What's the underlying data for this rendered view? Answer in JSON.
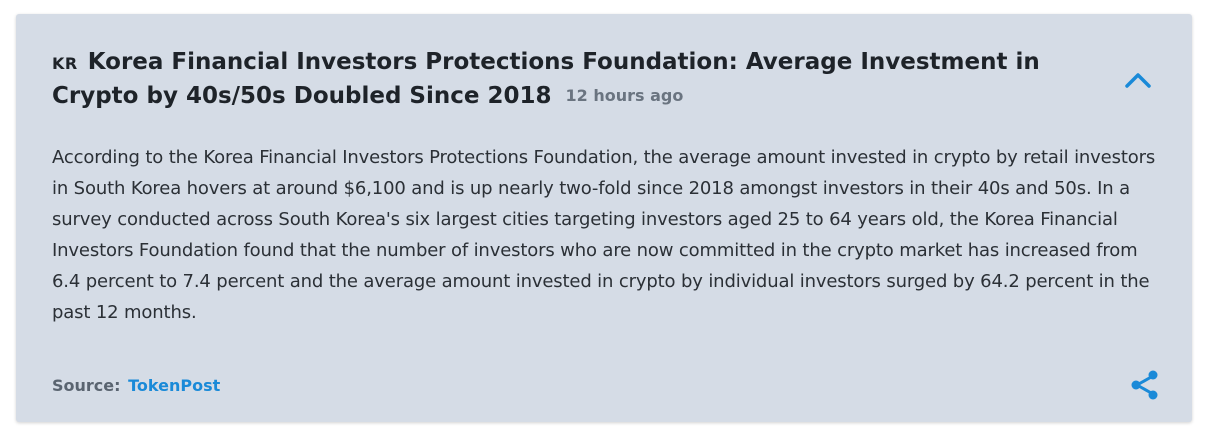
{
  "news": {
    "country_code": "KR",
    "title": "Korea Financial Investors Protections Foundation: Average Investment in Crypto by 40s/50s Doubled Since 2018",
    "time_ago": "12 hours ago",
    "body": "According to the Korea Financial Investors Protections Foundation, the average amount invested in crypto by retail investors in South Korea hovers at around $6,100 and is up nearly two-fold since 2018 amongst investors in their 40s and 50s. In a survey conducted across South Korea's six largest cities targeting investors aged 25 to 64 years old, the Korea Financial Investors Foundation found that the number of investors who are now committed in the crypto market has increased from 6.4 percent to 7.4 percent and the average amount invested in crypto by individual investors surged by 64.2 percent in the past 12 months.",
    "source_label": "Source:",
    "source_name": "TokenPost"
  },
  "icons": {
    "collapse": "chevron-up-icon",
    "share": "share-icon"
  },
  "colors": {
    "card_bg": "#d5dce6",
    "accent": "#1a8ad8",
    "title": "#1e2329",
    "muted": "#6a7480"
  }
}
